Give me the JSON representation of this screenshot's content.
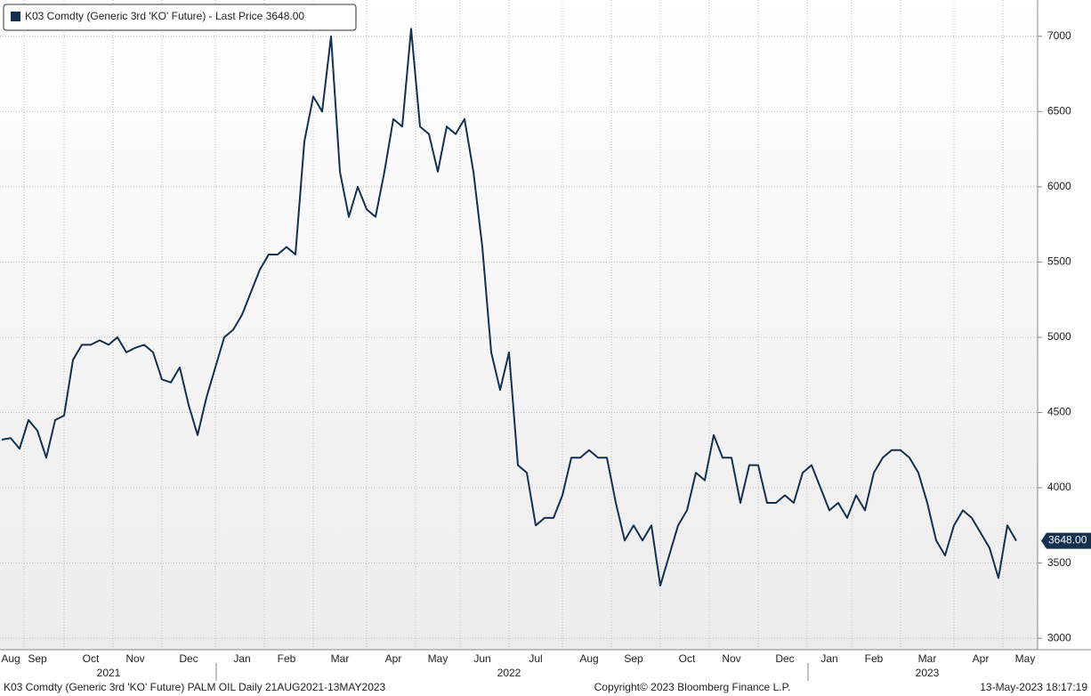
{
  "chart_data": {
    "type": "line",
    "legend_label": "K03 Comdty (Generic 3rd 'KO' Future) - Last Price 3648.00",
    "footer_left": "K03 Comdty (Generic 3rd 'KO' Future) PALM OIL  Daily 21AUG2021-13MAY2023",
    "footer_center": "Copyright© 2023 Bloomberg Finance L.P.",
    "footer_right": "13-May-2023 18:17:19",
    "categories": [
      null,
      "Aug",
      null,
      null,
      "Sep",
      null,
      null,
      null,
      null,
      null,
      "Oct",
      null,
      null,
      null,
      null,
      "Nov",
      null,
      null,
      null,
      null,
      null,
      "Dec",
      null,
      null,
      null,
      null,
      null,
      "Jan",
      null,
      null,
      null,
      null,
      "Feb",
      null,
      null,
      null,
      null,
      null,
      "Mar",
      null,
      null,
      null,
      null,
      null,
      "Apr",
      null,
      null,
      null,
      null,
      "May",
      null,
      null,
      null,
      null,
      "Jun",
      null,
      null,
      null,
      null,
      null,
      "Jul",
      null,
      null,
      null,
      null,
      null,
      "Aug",
      null,
      null,
      null,
      null,
      "Sep",
      null,
      null,
      null,
      null,
      null,
      "Oct",
      null,
      null,
      null,
      null,
      "Nov",
      null,
      null,
      null,
      null,
      null,
      "Dec",
      null,
      null,
      null,
      null,
      "Jan",
      null,
      null,
      null,
      null,
      "Feb",
      null,
      null,
      null,
      null,
      null,
      "Mar",
      null,
      null,
      null,
      null,
      null,
      "Apr",
      null,
      null,
      null,
      null,
      "May"
    ],
    "years": [
      null,
      null,
      null,
      null,
      null,
      null,
      null,
      null,
      null,
      null,
      null,
      null,
      "2021",
      null,
      null,
      null,
      null,
      null,
      null,
      null,
      null,
      null,
      null,
      null,
      null,
      null,
      null,
      null,
      null,
      null,
      null,
      null,
      null,
      null,
      null,
      null,
      null,
      null,
      null,
      null,
      null,
      null,
      null,
      null,
      null,
      null,
      null,
      null,
      null,
      null,
      null,
      null,
      null,
      null,
      null,
      null,
      null,
      "2022",
      null,
      null,
      null,
      null,
      null,
      null,
      null,
      null,
      null,
      null,
      null,
      null,
      null,
      null,
      null,
      null,
      null,
      null,
      null,
      null,
      null,
      null,
      null,
      null,
      null,
      null,
      null,
      null,
      null,
      null,
      null,
      null,
      null,
      null,
      null,
      null,
      null,
      null,
      null,
      null,
      null,
      null,
      null,
      null,
      null,
      null,
      "2023",
      null,
      null,
      null,
      null,
      null,
      null,
      null,
      null,
      null,
      null,
      null
    ],
    "series": [
      {
        "name": "K03 Comdty",
        "color": "#14304f",
        "last_label": "3648.00",
        "values": [
          4320,
          4330,
          4260,
          4450,
          4380,
          4200,
          4450,
          4480,
          4850,
          4950,
          4950,
          4980,
          4950,
          5000,
          4900,
          4930,
          4950,
          4900,
          4720,
          4700,
          4800,
          4550,
          4350,
          4600,
          4800,
          5000,
          5050,
          5150,
          5300,
          5450,
          5550,
          5550,
          5600,
          5550,
          6300,
          6600,
          6500,
          7000,
          6100,
          5800,
          6000,
          5850,
          5800,
          6100,
          6450,
          6400,
          7050,
          6400,
          6350,
          6100,
          6400,
          6350,
          6450,
          6100,
          5600,
          4900,
          4650,
          4900,
          4150,
          4100,
          3750,
          3800,
          3800,
          3950,
          4200,
          4200,
          4250,
          4200,
          4200,
          3900,
          3650,
          3750,
          3650,
          3750,
          3350,
          3550,
          3750,
          3850,
          4100,
          4050,
          4350,
          4200,
          4200,
          3900,
          4150,
          4150,
          3900,
          3900,
          3950,
          3900,
          4100,
          4150,
          4000,
          3850,
          3900,
          3800,
          3950,
          3850,
          4100,
          4200,
          4250,
          4250,
          4200,
          4100,
          3900,
          3650,
          3550,
          3750,
          3850,
          3800,
          3700,
          3600,
          3400,
          3750,
          3648,
          null
        ]
      }
    ],
    "ylim": [
      2924,
      7241
    ],
    "yticks": [
      3000,
      3500,
      4000,
      4500,
      5000,
      5500,
      6000,
      6500,
      7000
    ],
    "grid": true
  }
}
